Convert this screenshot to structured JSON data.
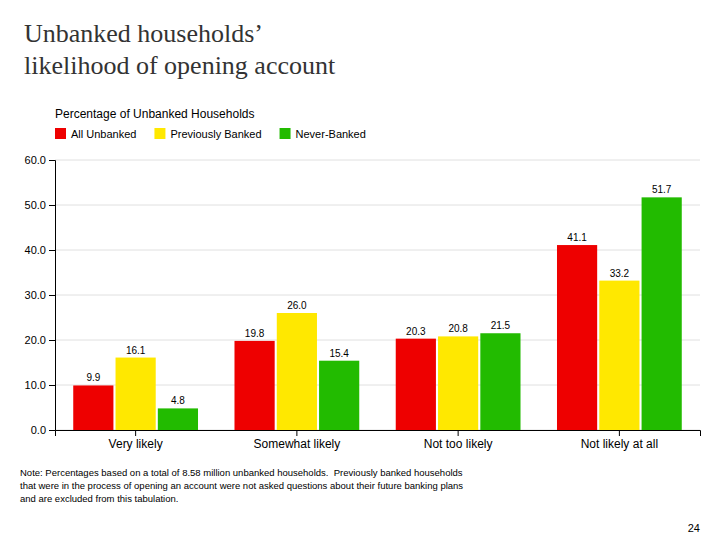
{
  "chart_data": {
    "type": "bar",
    "title": "Unbanked households’\nlikelihood of opening account",
    "ylabel": "Percentage of Unbanked Households",
    "categories": [
      "Very likely",
      "Somewhat likely",
      "Not too likely",
      "Not likely at all"
    ],
    "series": [
      {
        "name": "All Unbanked",
        "color": "#EE0000",
        "values": [
          9.9,
          19.8,
          20.3,
          41.1
        ],
        "value_labels": [
          "9.9",
          "19.8",
          "20.3",
          "41.1"
        ]
      },
      {
        "name": "Previously Banked",
        "color": "#FFE800",
        "values": [
          16.1,
          26.0,
          20.8,
          33.2
        ],
        "value_labels": [
          "16.1",
          "26.0",
          "20.8",
          "33.2"
        ]
      },
      {
        "name": "Never-Banked",
        "color": "#22BB00",
        "values": [
          4.8,
          15.4,
          21.5,
          51.7
        ],
        "value_labels": [
          "4.8",
          "15.4",
          "21.5",
          "51.7"
        ]
      }
    ],
    "ylim": [
      0,
      60
    ],
    "yticks": [
      {
        "value": 0,
        "label": "0.0"
      },
      {
        "value": 10,
        "label": "10.0"
      },
      {
        "value": 20,
        "label": "20.0"
      },
      {
        "value": 30,
        "label": "30.0"
      },
      {
        "value": 40,
        "label": "40.0"
      },
      {
        "value": 50,
        "label": "50.0"
      },
      {
        "value": 60,
        "label": "60.0"
      }
    ],
    "grid": true,
    "legend": "upper-left",
    "data_labels": true,
    "annotations": [
      "Note: Percentages based on a total of 8.58 million unbanked households.  Previously banked households\nthat were in the process of opening an account were not asked questions about their future banking plans\nand are excluded from this tabulation.",
      "24"
    ]
  }
}
